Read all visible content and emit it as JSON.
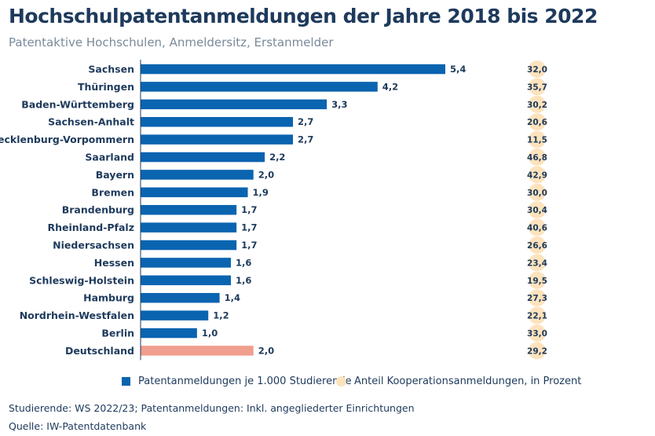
{
  "title": "Hochschulpatentanmeldungen der Jahre 2018 bis 2022",
  "subtitle": "Patentaktive Hochschulen, Anmeldersitz, Erstanmelder",
  "chart_data": {
    "type": "bar",
    "orientation": "horizontal",
    "categories": [
      "Sachsen",
      "Thüringen",
      "Baden-Württemberg",
      "Sachsen-Anhalt",
      "Mecklenburg-Vorpommern",
      "Saarland",
      "Bayern",
      "Bremen",
      "Brandenburg",
      "Rheinland-Pfalz",
      "Niedersachsen",
      "Hessen",
      "Schleswig-Holstein",
      "Hamburg",
      "Nordrhein-Westfalen",
      "Berlin",
      "Deutschland"
    ],
    "series": [
      {
        "name": "Patentanmeldungen je 1.000 Studierende",
        "values": [
          5.4,
          4.2,
          3.3,
          2.7,
          2.7,
          2.2,
          2.0,
          1.9,
          1.7,
          1.7,
          1.7,
          1.6,
          1.6,
          1.4,
          1.2,
          1.0,
          2.0
        ],
        "labels": [
          "5,4",
          "4,2",
          "3,3",
          "2,7",
          "2,7",
          "2,2",
          "2,0",
          "1,9",
          "1,7",
          "1,7",
          "1,7",
          "1,6",
          "1,6",
          "1,4",
          "1,2",
          "1,0",
          "2,0"
        ],
        "color": "#0a64b0",
        "highlight_color": "#f09e8e"
      },
      {
        "name": "Anteil Kooperationsanmeldungen, in Prozent",
        "values": [
          32.0,
          35.7,
          30.2,
          20.6,
          11.5,
          46.8,
          42.9,
          30.0,
          30.4,
          40.6,
          26.6,
          23.4,
          19.5,
          27.3,
          22.1,
          33.0,
          29.2
        ],
        "labels": [
          "32,0",
          "35,7",
          "30,2",
          "20,6",
          "11,5",
          "46,8",
          "42,9",
          "30,0",
          "30,4",
          "40,6",
          "26,6",
          "23,4",
          "19,5",
          "27,3",
          "22,1",
          "33,0",
          "29,2"
        ],
        "color": "#fde3bd"
      }
    ],
    "highlight_category": "Deutschland",
    "xlim": [
      0,
      5.4
    ],
    "grid": false,
    "legend_position": "bottom"
  },
  "footnotes": {
    "note": "Studierende: WS 2022/23; Patentanmeldungen: Inkl. angegliederter Einrichtungen",
    "source": "Quelle: IW-Patentdatenbank"
  }
}
